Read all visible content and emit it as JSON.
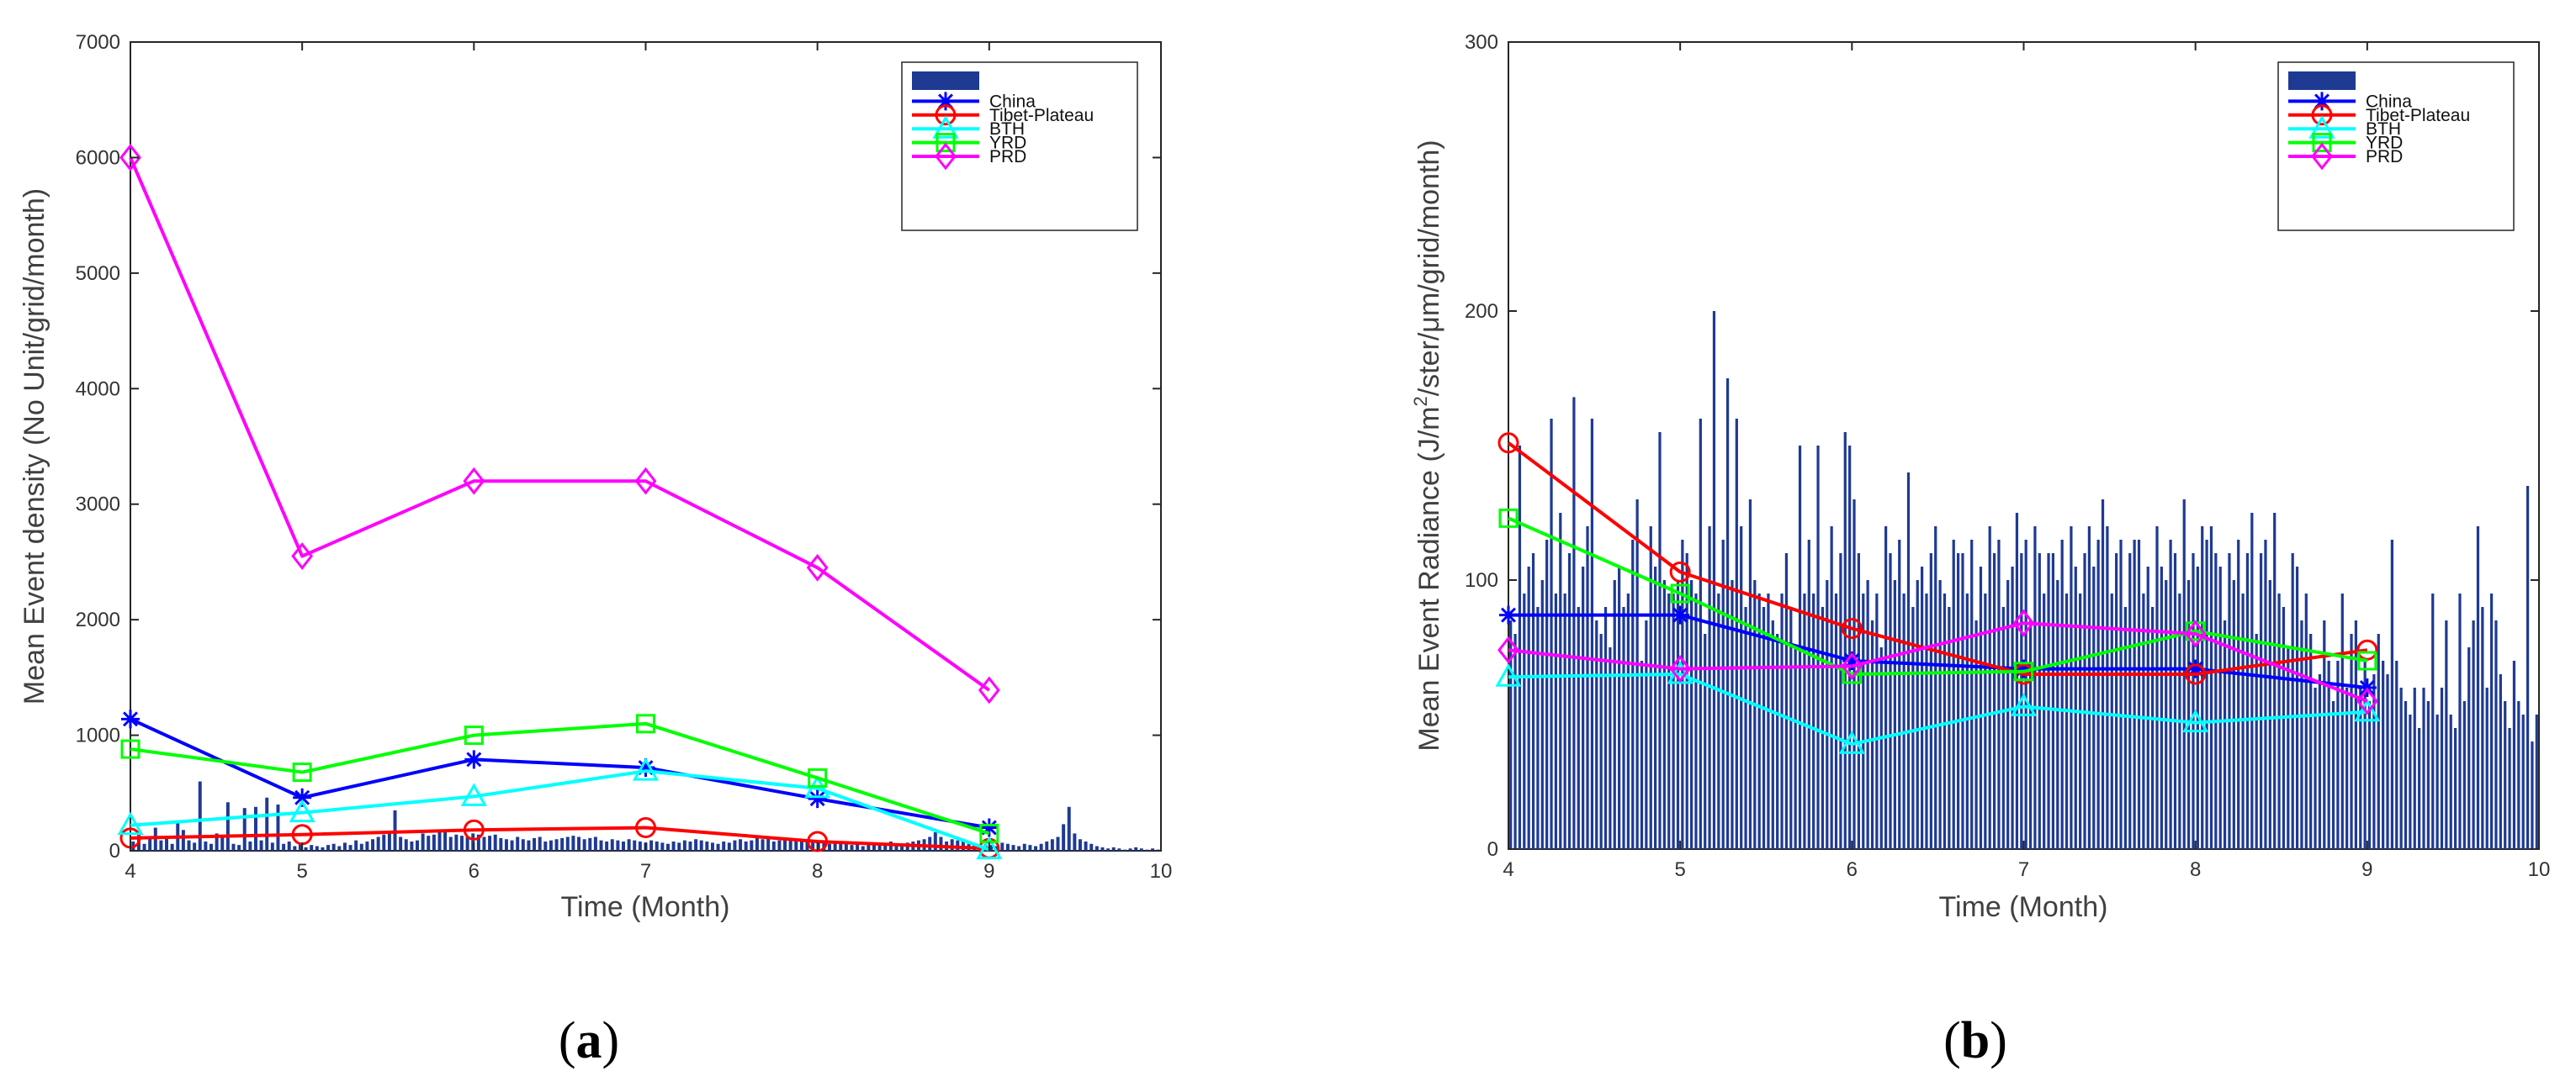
{
  "chart_data": [
    {
      "type": "line",
      "panel_label": "a",
      "xlabel": "Time (Month)",
      "ylabel": "Mean Event density (No Unit/grid/month)",
      "xlim": [
        4,
        10
      ],
      "ylim": [
        0,
        7000
      ],
      "xticks": [
        "4",
        "5",
        "6",
        "7",
        "8",
        "9",
        "10"
      ],
      "yticks": [
        "0",
        "1000",
        "2000",
        "3000",
        "4000",
        "5000",
        "6000",
        "7000"
      ],
      "legend_position": "top-right",
      "bar_series": {
        "name": "",
        "color": "#1f3a93",
        "x_start": 4,
        "x_end": 10,
        "values": [
          80,
          150,
          60,
          120,
          200,
          90,
          110,
          60,
          250,
          180,
          90,
          70,
          600,
          80,
          60,
          150,
          120,
          420,
          60,
          50,
          370,
          80,
          380,
          90,
          460,
          70,
          400,
          60,
          80,
          40,
          60,
          30,
          50,
          40,
          30,
          50,
          60,
          40,
          70,
          50,
          90,
          60,
          80,
          100,
          120,
          140,
          160,
          350,
          120,
          100,
          80,
          90,
          150,
          130,
          140,
          180,
          160,
          120,
          140,
          130,
          120,
          150,
          140,
          120,
          130,
          140,
          110,
          100,
          90,
          120,
          100,
          90,
          110,
          120,
          80,
          90,
          100,
          110,
          120,
          130,
          120,
          100,
          110,
          120,
          90,
          80,
          100,
          90,
          80,
          100,
          90,
          80,
          70,
          90,
          80,
          70,
          60,
          80,
          70,
          90,
          80,
          100,
          90,
          80,
          70,
          60,
          80,
          70,
          90,
          100,
          80,
          90,
          110,
          100,
          120,
          80,
          90,
          100,
          110,
          90,
          80,
          100,
          90,
          70,
          80,
          60,
          70,
          80,
          60,
          50,
          60,
          40,
          50,
          60,
          70,
          60,
          80,
          50,
          60,
          70,
          80,
          90,
          100,
          120,
          160,
          120,
          80,
          100,
          90,
          80,
          60,
          50,
          40,
          60,
          50,
          40,
          70,
          60,
          50,
          40,
          60,
          50,
          40,
          60,
          80,
          100,
          120,
          230,
          380,
          150,
          100,
          80,
          60,
          40,
          30,
          20,
          30,
          20,
          10,
          20,
          30,
          20,
          10,
          20,
          10
        ]
      },
      "series": [
        {
          "name": "China",
          "color": "#0000ff",
          "marker": "asterisk",
          "x": [
            4,
            5,
            6,
            7,
            8,
            9
          ],
          "values": [
            1140,
            460,
            790,
            720,
            450,
            200
          ]
        },
        {
          "name": "Tibet-Plateau",
          "color": "#ff0000",
          "marker": "circle",
          "x": [
            4,
            5,
            6,
            7,
            8,
            9
          ],
          "values": [
            110,
            140,
            180,
            200,
            80,
            20
          ]
        },
        {
          "name": "BTH",
          "color": "#00ffff",
          "marker": "triangle",
          "x": [
            4,
            5,
            6,
            7,
            8,
            9
          ],
          "values": [
            220,
            330,
            470,
            690,
            540,
            10
          ]
        },
        {
          "name": "YRD",
          "color": "#00ff00",
          "marker": "square",
          "x": [
            4,
            5,
            6,
            7,
            8,
            9
          ],
          "values": [
            880,
            680,
            1000,
            1100,
            630,
            150
          ]
        },
        {
          "name": "PRD",
          "color": "#ff00ff",
          "marker": "diamond",
          "x": [
            4,
            5,
            6,
            7,
            8,
            9
          ],
          "values": [
            6000,
            2550,
            3200,
            3200,
            2450,
            1390
          ]
        }
      ]
    },
    {
      "type": "line",
      "panel_label": "b",
      "xlabel": "Time (Month)",
      "ylabel_prefix": "Mean Event Radiance (J/m",
      "ylabel_sup": "2",
      "ylabel_suffix": "/ster/μm/grid/month)",
      "xlim": [
        4,
        10
      ],
      "ylim": [
        0,
        300
      ],
      "xticks": [
        "4",
        "5",
        "6",
        "7",
        "8",
        "9",
        "10"
      ],
      "yticks": [
        "0",
        "100",
        "200",
        "300"
      ],
      "legend_position": "top-right",
      "bar_series": {
        "name": "",
        "color": "#1f3a93",
        "x_start": 4,
        "x_end": 10,
        "values": [
          85,
          80,
          150,
          95,
          105,
          110,
          90,
          100,
          115,
          160,
          95,
          125,
          95,
          110,
          168,
          90,
          105,
          120,
          160,
          85,
          80,
          90,
          75,
          100,
          105,
          90,
          95,
          115,
          130,
          70,
          85,
          120,
          105,
          155,
          100,
          95,
          95,
          100,
          115,
          110,
          100,
          95,
          160,
          80,
          120,
          200,
          95,
          115,
          175,
          100,
          160,
          120,
          90,
          130,
          100,
          95,
          90,
          95,
          85,
          80,
          95,
          110,
          90,
          75,
          150,
          95,
          115,
          95,
          150,
          90,
          100,
          120,
          95,
          110,
          155,
          150,
          130,
          110,
          95,
          100,
          85,
          95,
          75,
          120,
          110,
          100,
          115,
          95,
          140,
          90,
          100,
          105,
          95,
          110,
          120,
          100,
          95,
          90,
          115,
          110,
          110,
          95,
          115,
          85,
          105,
          95,
          120,
          110,
          115,
          90,
          100,
          105,
          125,
          110,
          115,
          85,
          120,
          110,
          95,
          110,
          110,
          100,
          115,
          95,
          120,
          105,
          95,
          110,
          120,
          105,
          115,
          130,
          120,
          95,
          110,
          115,
          90,
          110,
          115,
          115,
          95,
          105,
          90,
          120,
          105,
          100,
          115,
          110,
          95,
          130,
          100,
          110,
          105,
          120,
          115,
          120,
          110,
          105,
          85,
          110,
          100,
          115,
          95,
          110,
          125,
          80,
          110,
          115,
          100,
          125,
          95,
          90,
          75,
          110,
          105,
          85,
          95,
          80,
          60,
          65,
          85,
          70,
          55,
          70,
          95,
          60,
          80,
          85,
          60,
          70,
          55,
          65,
          80,
          70,
          65,
          115,
          70,
          60,
          55,
          50,
          60,
          45,
          60,
          55,
          95,
          50,
          60,
          85,
          50,
          45,
          95,
          55,
          75,
          85,
          120,
          90,
          60,
          95,
          85,
          65,
          55,
          45,
          70,
          55,
          50,
          135,
          40,
          50
        ]
      },
      "series": [
        {
          "name": "China",
          "color": "#0000ff",
          "marker": "asterisk",
          "x": [
            4,
            5,
            6,
            7,
            8,
            9
          ],
          "values": [
            87,
            87,
            70,
            67,
            67,
            60
          ]
        },
        {
          "name": "Tibet-Plateau",
          "color": "#ff0000",
          "marker": "circle",
          "x": [
            4,
            5,
            6,
            7,
            8,
            9
          ],
          "values": [
            151,
            103,
            82,
            65,
            65,
            74
          ]
        },
        {
          "name": "BTH",
          "color": "#00ffff",
          "marker": "triangle",
          "x": [
            4,
            5,
            6,
            7,
            8,
            9
          ],
          "values": [
            64,
            65,
            39,
            53,
            47,
            51
          ]
        },
        {
          "name": "YRD",
          "color": "#00ff00",
          "marker": "square",
          "x": [
            4,
            5,
            6,
            7,
            8,
            9
          ],
          "values": [
            123,
            95,
            65,
            66,
            81,
            70
          ]
        },
        {
          "name": "PRD",
          "color": "#ff00ff",
          "marker": "diamond",
          "x": [
            4,
            5,
            6,
            7,
            8,
            9
          ],
          "values": [
            74,
            67,
            68,
            84,
            80,
            55
          ]
        }
      ]
    }
  ]
}
